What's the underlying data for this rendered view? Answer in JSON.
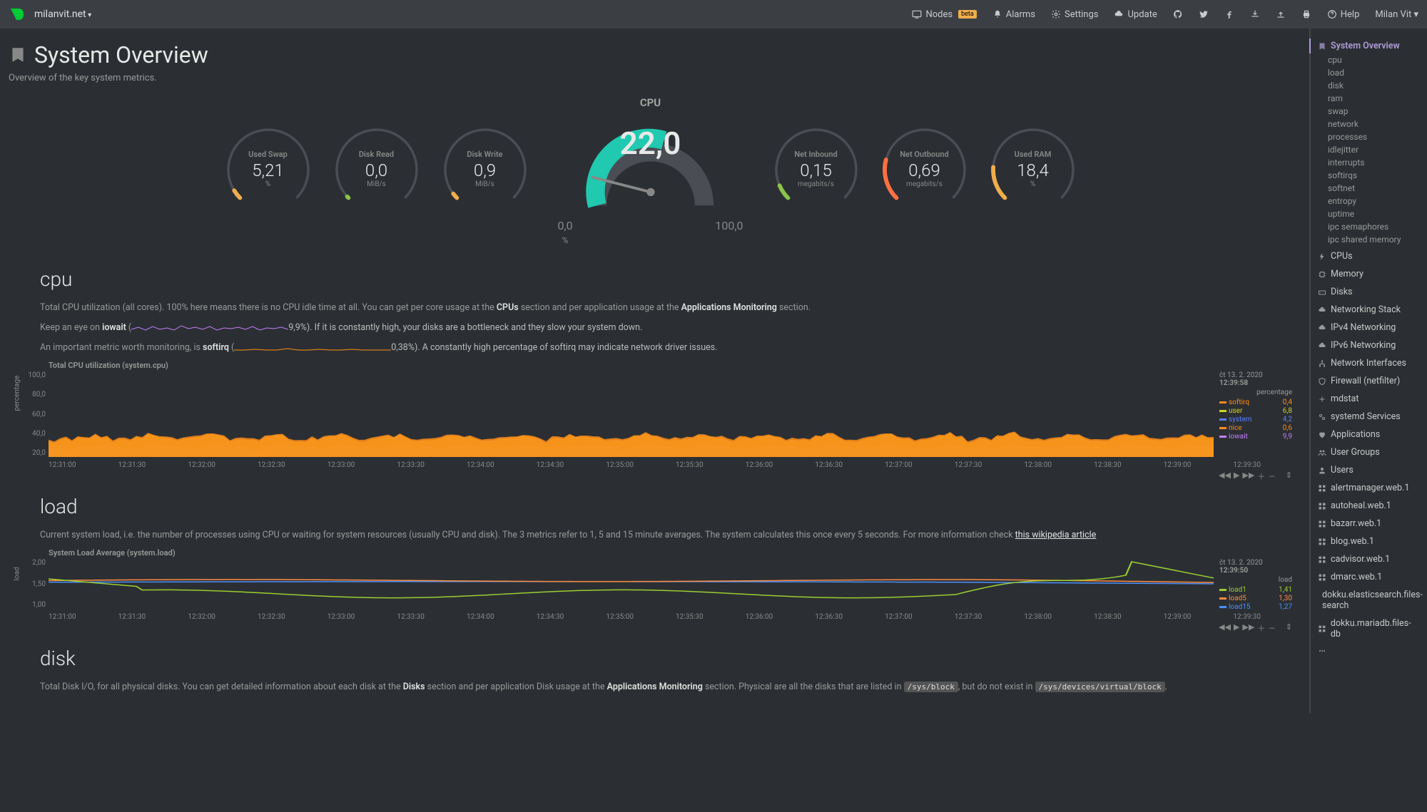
{
  "topnav": {
    "hostname": "milanvit.net",
    "items": [
      {
        "label": "Nodes",
        "icon": "monitor",
        "badge": "beta"
      },
      {
        "label": "Alarms",
        "icon": "bell"
      },
      {
        "label": "Settings",
        "icon": "gear"
      },
      {
        "label": "Update",
        "icon": "cloud"
      }
    ],
    "icons": [
      "github",
      "twitter",
      "facebook",
      "download",
      "upload",
      "print"
    ],
    "help": "Help",
    "user": "Milan Vit"
  },
  "page": {
    "title": "System Overview",
    "subtitle": "Overview of the key system metrics."
  },
  "gauges": {
    "swap": {
      "label": "Used Swap",
      "value": "5,21",
      "unit": "%",
      "color": "#f0ad4e",
      "pct": 5
    },
    "diskread": {
      "label": "Disk Read",
      "value": "0,0",
      "unit": "MiB/s",
      "color": "#8bc34a",
      "pct": 1
    },
    "diskwrite": {
      "label": "Disk Write",
      "value": "0,9",
      "unit": "MiB/s",
      "color": "#f0ad4e",
      "pct": 3
    },
    "cpu": {
      "label": "CPU",
      "value": "22,0",
      "unit": "%",
      "color": "#20c9b0",
      "pct": 22,
      "min": "0,0",
      "max": "100,0"
    },
    "netin": {
      "label": "Net Inbound",
      "value": "0,15",
      "unit": "megabits/s",
      "color": "#8bc34a",
      "pct": 8
    },
    "netout": {
      "label": "Net Outbound",
      "value": "0,69",
      "unit": "megabits/s",
      "color": "#ff7043",
      "pct": 22
    },
    "ram": {
      "label": "Used RAM",
      "value": "18,4",
      "unit": "%",
      "color": "#f0ad4e",
      "pct": 18
    }
  },
  "cpu_section": {
    "title": "cpu",
    "desc_parts": {
      "p1a": "Total CPU utilization (all cores). 100% here means there is no CPU idle time at all. You can get per core usage at the ",
      "p1b": "CPUs",
      "p1c": " section and per application usage at the ",
      "p1d": "Applications Monitoring",
      "p1e": " section.",
      "p2a": "Keep an eye on ",
      "p2b": "iowait",
      "p2c": " (",
      "p2d": "9,9%). If it is constantly high, your disks are a bottleneck and they slow your system down.",
      "p3a": "An important metric worth monitoring, is ",
      "p3b": "softirq",
      "p3c": " (",
      "p3d": "0,38%). A constantly high percentage of softirq may indicate network driver issues."
    },
    "chart": {
      "title": "Total CPU utilization (system.cpu)",
      "ylabel": "percentage",
      "ylim": [
        0,
        100
      ],
      "yticks": [
        "100,0",
        "80,0",
        "60,0",
        "40,0",
        "20,0"
      ],
      "timestamp_date": "čt 13. 2. 2020",
      "timestamp_time": "12:39:58",
      "legend_title": "percentage",
      "series": [
        {
          "name": "softirq",
          "color": "#ff8c1a",
          "value": "0,4"
        },
        {
          "name": "user",
          "color": "#d4d420",
          "value": "6,8"
        },
        {
          "name": "system",
          "color": "#5b7fff",
          "value": "4,2"
        },
        {
          "name": "nice",
          "color": "#ff8c1a",
          "value": "0,6"
        },
        {
          "name": "iowait",
          "color": "#c77dff",
          "value": "9,9"
        }
      ],
      "xticks": [
        "12:31:00",
        "12:31:30",
        "12:32:00",
        "12:32:30",
        "12:33:00",
        "12:33:30",
        "12:34:00",
        "12:34:30",
        "12:35:00",
        "12:35:30",
        "12:36:00",
        "12:36:30",
        "12:37:00",
        "12:37:30",
        "12:38:00",
        "12:38:30",
        "12:39:00",
        "12:39:30"
      ],
      "bg": "#2b2f33",
      "height": 120
    }
  },
  "load_section": {
    "title": "load",
    "desc": {
      "a": "Current system load, i.e. the number of processes using CPU or waiting for system resources (usually CPU and disk). The 3 metrics refer to 1, 5 and 15 minute averages. The system calculates this once every 5 seconds. For more information check ",
      "link": "this wikipedia article"
    },
    "chart": {
      "title": "System Load Average (system.load)",
      "ylabel": "load",
      "ylim": [
        0.5,
        2.0
      ],
      "yticks": [
        "2,00",
        "1,50",
        "1,00"
      ],
      "timestamp_date": "čt 13. 2. 2020",
      "timestamp_time": "12:39:50",
      "legend_title": "load",
      "series": [
        {
          "name": "load1",
          "color": "#9acd32",
          "value": "1,41"
        },
        {
          "name": "load5",
          "color": "#ff8c42",
          "value": "1,30"
        },
        {
          "name": "load15",
          "color": "#4a90ff",
          "value": "1,27"
        }
      ],
      "xticks": [
        "12:31:00",
        "12:31:30",
        "12:32:00",
        "12:32:30",
        "12:33:00",
        "12:33:30",
        "12:34:00",
        "12:34:30",
        "12:35:00",
        "12:35:30",
        "12:36:00",
        "12:36:30",
        "12:37:00",
        "12:37:30",
        "12:38:00",
        "12:38:30",
        "12:39:00",
        "12:39:30"
      ],
      "height": 70
    }
  },
  "disk_section": {
    "title": "disk",
    "desc": {
      "a": "Total Disk I/O, for all physical disks. You can get detailed information about each disk at the ",
      "b": "Disks",
      "c": " section and per application Disk usage at the ",
      "d": "Applications Monitoring",
      "e": " section. Physical are all the disks that are listed in ",
      "code1": "/sys/block",
      "f": ", but do not exist in ",
      "code2": "/sys/devices/virtual/block",
      "g": "."
    }
  },
  "sidebar": {
    "groups": [
      {
        "label": "System Overview",
        "icon": "bookmark",
        "active": true,
        "subs": [
          "cpu",
          "load",
          "disk",
          "ram",
          "swap",
          "network",
          "processes",
          "idlejitter",
          "interrupts",
          "softirqs",
          "softnet",
          "entropy",
          "uptime",
          "ipc semaphores",
          "ipc shared memory"
        ]
      },
      {
        "label": "CPUs",
        "icon": "bolt"
      },
      {
        "label": "Memory",
        "icon": "chip"
      },
      {
        "label": "Disks",
        "icon": "hdd"
      },
      {
        "label": "Networking Stack",
        "icon": "cloud"
      },
      {
        "label": "IPv4 Networking",
        "icon": "cloud"
      },
      {
        "label": "IPv6 Networking",
        "icon": "cloud"
      },
      {
        "label": "Network Interfaces",
        "icon": "sitemap"
      },
      {
        "label": "Firewall (netfilter)",
        "icon": "shield"
      },
      {
        "label": "mdstat",
        "icon": "plus"
      },
      {
        "label": "systemd Services",
        "icon": "cogs"
      },
      {
        "label": "Applications",
        "icon": "heart"
      },
      {
        "label": "User Groups",
        "icon": "users"
      },
      {
        "label": "Users",
        "icon": "user"
      },
      {
        "label": "alertmanager.web.1",
        "icon": "th"
      },
      {
        "label": "autoheal.web.1",
        "icon": "th"
      },
      {
        "label": "bazarr.web.1",
        "icon": "th"
      },
      {
        "label": "blog.web.1",
        "icon": "th"
      },
      {
        "label": "cadvisor.web.1",
        "icon": "th"
      },
      {
        "label": "dmarc.web.1",
        "icon": "th"
      },
      {
        "label": "dokku.elasticsearch.files-search",
        "icon": "th"
      },
      {
        "label": "dokku.mariadb.files-db",
        "icon": "th"
      },
      {
        "label": "",
        "icon": "dots"
      }
    ]
  },
  "controls": {
    "rewind": "◀◀",
    "play": "▶",
    "forward": "▶▶",
    "plus": "＋",
    "minus": "－",
    "resize": "⇕"
  }
}
